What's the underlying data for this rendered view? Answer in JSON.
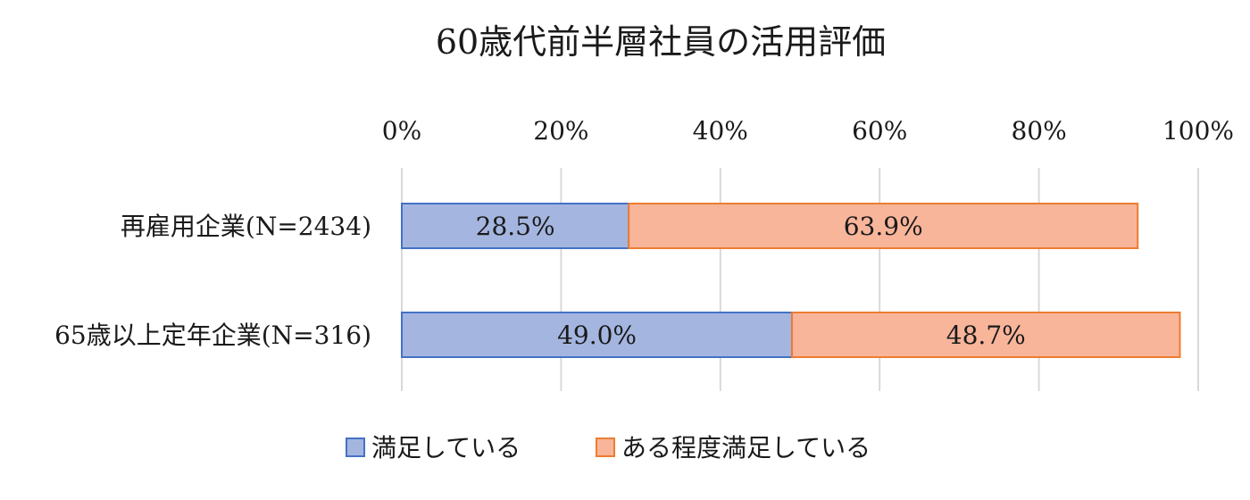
{
  "chart_data": {
    "type": "bar",
    "orientation": "horizontal",
    "stacked": true,
    "title": "60歳代前半層社員の活用評価",
    "categories": [
      "再雇用企業(N=2434)",
      "65歳以上定年企業(N=316)"
    ],
    "series": [
      {
        "name": "満足している",
        "values": [
          28.5,
          49.0
        ],
        "labels": [
          "28.5%",
          "49.0%"
        ],
        "color": "#a4b6e0",
        "edge_color": "#4472c4"
      },
      {
        "name": "ある程度満足している",
        "values": [
          63.9,
          48.7
        ],
        "labels": [
          "63.9%",
          "48.7%"
        ],
        "color": "#f8b59a",
        "edge_color": "#ed7d31"
      }
    ],
    "x_ticks": [
      "0%",
      "20%",
      "40%",
      "60%",
      "80%",
      "100%"
    ],
    "xlim": [
      0,
      100
    ],
    "grid": true,
    "legend_position": "bottom"
  }
}
